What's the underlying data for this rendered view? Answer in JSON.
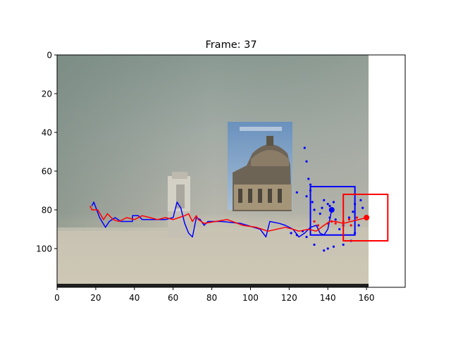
{
  "chart_data": {
    "type": "line",
    "title": "Frame: 37",
    "xlabel": "",
    "ylabel": "",
    "xlim": [
      0,
      180
    ],
    "ylim": [
      120,
      0
    ],
    "y_inverted": true,
    "grid": false,
    "x_ticks": [
      0,
      20,
      40,
      60,
      80,
      100,
      120,
      140,
      160
    ],
    "y_ticks": [
      0,
      20,
      40,
      60,
      80,
      100
    ],
    "image_extent": {
      "x": [
        0,
        160
      ],
      "y": [
        0,
        120
      ]
    },
    "colors": {
      "blue": "#0000ff",
      "red": "#ff0000"
    },
    "series": [
      {
        "color": "blue",
        "x": [
          18,
          19,
          22,
          25,
          27,
          30,
          33,
          36,
          39,
          39,
          42,
          44,
          56,
          60,
          62,
          64,
          66,
          68,
          70,
          72,
          74,
          76,
          78,
          85,
          95,
          105,
          108,
          110,
          115,
          118,
          122,
          125,
          128,
          131,
          134,
          136,
          138,
          140,
          142
        ],
        "y": [
          78,
          76,
          84,
          89,
          86,
          84,
          86,
          86,
          86,
          83,
          83,
          85,
          85,
          84,
          76,
          79,
          87,
          92,
          94,
          84,
          85,
          88,
          86,
          86,
          87,
          90,
          94,
          86,
          87,
          88,
          90,
          94,
          92,
          89,
          88,
          92,
          93,
          90,
          80
        ],
        "end_x": 142,
        "end_y": 80
      },
      {
        "color": "red",
        "x": [
          17,
          18,
          21,
          24,
          26,
          29,
          32,
          36,
          40,
          44,
          48,
          52,
          56,
          60,
          63,
          66,
          68,
          70,
          72,
          73,
          76,
          82,
          88,
          96,
          103,
          106,
          109,
          118,
          122,
          125,
          130,
          134,
          138,
          141,
          144,
          148,
          152,
          156,
          160
        ],
        "y": [
          78,
          80,
          80,
          85,
          82,
          85,
          86,
          84,
          85,
          83,
          84,
          85,
          84,
          85,
          84,
          83,
          82,
          86,
          83,
          85,
          87,
          86,
          85,
          88,
          89,
          90,
          91,
          89,
          90,
          91,
          90,
          91,
          88,
          86,
          86,
          87,
          86,
          85,
          84
        ],
        "end_x": 160,
        "end_y": 84
      }
    ],
    "blue_points": [
      [
        128,
        48
      ],
      [
        129,
        55
      ],
      [
        130,
        64
      ],
      [
        131,
        67
      ],
      [
        131,
        70
      ],
      [
        129,
        73
      ],
      [
        124,
        71
      ],
      [
        132,
        76
      ],
      [
        133,
        80
      ],
      [
        136,
        82
      ],
      [
        137,
        79
      ],
      [
        138,
        75
      ],
      [
        140,
        77
      ],
      [
        141,
        78
      ],
      [
        143,
        76
      ],
      [
        141,
        84
      ],
      [
        144,
        85
      ],
      [
        146,
        90
      ],
      [
        148,
        88
      ],
      [
        151,
        84
      ],
      [
        153,
        81
      ],
      [
        154,
        77
      ],
      [
        157,
        75
      ],
      [
        158,
        79
      ],
      [
        156,
        88
      ],
      [
        154,
        92
      ],
      [
        152,
        96
      ],
      [
        148,
        98
      ],
      [
        143,
        99
      ],
      [
        140,
        100
      ],
      [
        138,
        101
      ],
      [
        133,
        98
      ],
      [
        129,
        94
      ],
      [
        127,
        91
      ],
      [
        124,
        93
      ],
      [
        121,
        92
      ]
    ],
    "red_points": [
      [
        133,
        86
      ],
      [
        135,
        88
      ],
      [
        140,
        87
      ],
      [
        142,
        86
      ],
      [
        144,
        87
      ],
      [
        148,
        86
      ],
      [
        151,
        85
      ],
      [
        155,
        84
      ],
      [
        152,
        88
      ]
    ],
    "boxes": [
      {
        "color": "blue",
        "x": [
          131,
          154
        ],
        "y": [
          68,
          93
        ]
      },
      {
        "color": "red",
        "x": [
          148,
          171
        ],
        "y": [
          72,
          96
        ]
      }
    ]
  }
}
